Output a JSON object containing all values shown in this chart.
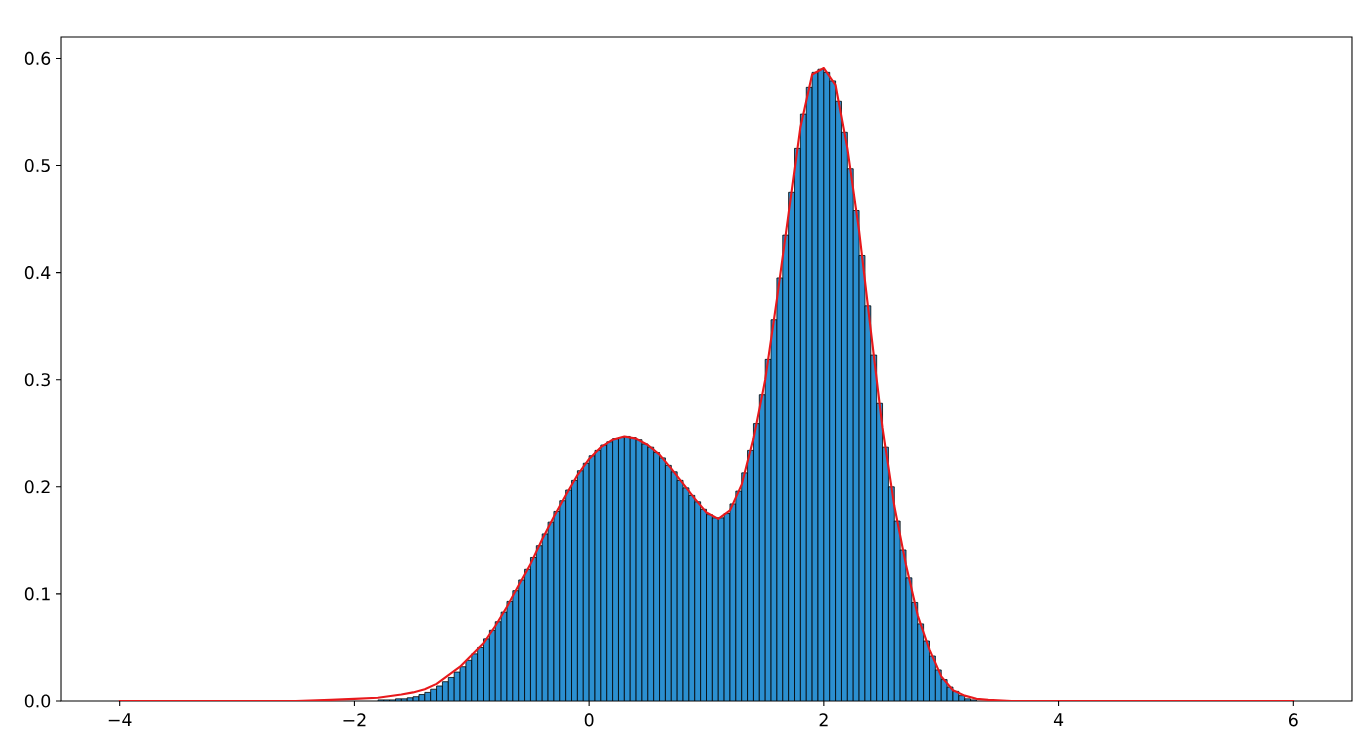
{
  "chart_data": {
    "type": "histogram",
    "bins": [
      -1.8,
      -1.75,
      -1.7,
      -1.65,
      -1.6,
      -1.55,
      -1.5,
      -1.45,
      -1.4,
      -1.35,
      -1.3,
      -1.25,
      -1.2,
      -1.15,
      -1.1,
      -1.05,
      -1,
      -0.95,
      -0.9,
      -0.85,
      -0.8,
      -0.75,
      -0.7,
      -0.65,
      -0.6,
      -0.55,
      -0.5,
      -0.45,
      -0.4,
      -0.35,
      -0.3,
      -0.25,
      -0.2,
      -0.15,
      -0.1,
      -0.05,
      0,
      0.05,
      0.1,
      0.15,
      0.2,
      0.25,
      0.3,
      0.35,
      0.4,
      0.45,
      0.5,
      0.55,
      0.6,
      0.65,
      0.7,
      0.75,
      0.8,
      0.85,
      0.9,
      0.95,
      1,
      1.05,
      1.1,
      1.15,
      1.2,
      1.25,
      1.3,
      1.35,
      1.4,
      1.45,
      1.5,
      1.55,
      1.6,
      1.65,
      1.7,
      1.75,
      1.8,
      1.85,
      1.9,
      1.95,
      2,
      2.05,
      2.1,
      2.15,
      2.2,
      2.25,
      2.3,
      2.35,
      2.4,
      2.45,
      2.5,
      2.55,
      2.6,
      2.65,
      2.7,
      2.75,
      2.8,
      2.85,
      2.9,
      2.95,
      3,
      3.05,
      3.1,
      3.15,
      3.2,
      3.25,
      3.3
    ],
    "series": [
      {
        "color": "#2b8fd0",
        "values": [
          0.001,
          0.001,
          0.001,
          0.002,
          0.002,
          0.003,
          0.004,
          0.006,
          0.008,
          0.011,
          0.014,
          0.018,
          0.022,
          0.027,
          0.032,
          0.038,
          0.044,
          0.05,
          0.058,
          0.066,
          0.074,
          0.083,
          0.093,
          0.103,
          0.113,
          0.123,
          0.134,
          0.145,
          0.156,
          0.167,
          0.177,
          0.187,
          0.197,
          0.206,
          0.215,
          0.222,
          0.229,
          0.234,
          0.239,
          0.242,
          0.245,
          0.246,
          0.247,
          0.246,
          0.244,
          0.24,
          0.237,
          0.232,
          0.227,
          0.22,
          0.214,
          0.206,
          0.199,
          0.192,
          0.186,
          0.179,
          0.174,
          0.171,
          0.171,
          0.175,
          0.184,
          0.196,
          0.213,
          0.234,
          0.259,
          0.286,
          0.319,
          0.356,
          0.395,
          0.435,
          0.475,
          0.516,
          0.548,
          0.573,
          0.587,
          0.59,
          0.587,
          0.579,
          0.56,
          0.531,
          0.497,
          0.458,
          0.416,
          0.369,
          0.323,
          0.278,
          0.237,
          0.2,
          0.168,
          0.141,
          0.115,
          0.092,
          0.072,
          0.056,
          0.042,
          0.029,
          0.02,
          0.013,
          0.009,
          0.005,
          0.002,
          0.001
        ]
      },
      {
        "type": "line",
        "color": "#e8191c",
        "x": [
          -4,
          -3.5,
          -3,
          -2.5,
          -2.2,
          -2,
          -1.8,
          -1.6,
          -1.5,
          -1.4,
          -1.3,
          -1.2,
          -1.1,
          -1,
          -0.9,
          -0.8,
          -0.7,
          -0.6,
          -0.5,
          -0.4,
          -0.3,
          -0.2,
          -0.1,
          0,
          0.1,
          0.2,
          0.3,
          0.4,
          0.5,
          0.6,
          0.7,
          0.8,
          0.9,
          1,
          1.1,
          1.2,
          1.3,
          1.4,
          1.5,
          1.6,
          1.7,
          1.8,
          1.9,
          2,
          2.1,
          2.2,
          2.3,
          2.4,
          2.5,
          2.6,
          2.7,
          2.8,
          2.9,
          3,
          3.1,
          3.2,
          3.3,
          3.4,
          3.6,
          3.8,
          4,
          4.5,
          5,
          5.5,
          6
        ],
        "values": [
          0,
          0,
          0,
          0,
          0.001,
          0.002,
          0.003,
          0.006,
          0.008,
          0.011,
          0.016,
          0.024,
          0.032,
          0.043,
          0.054,
          0.07,
          0.088,
          0.108,
          0.128,
          0.151,
          0.172,
          0.192,
          0.211,
          0.226,
          0.237,
          0.244,
          0.247,
          0.245,
          0.239,
          0.23,
          0.217,
          0.203,
          0.189,
          0.176,
          0.17,
          0.178,
          0.202,
          0.245,
          0.3,
          0.375,
          0.455,
          0.536,
          0.585,
          0.591,
          0.575,
          0.516,
          0.439,
          0.346,
          0.255,
          0.182,
          0.127,
          0.08,
          0.048,
          0.023,
          0.01,
          0.005,
          0.002,
          0.001,
          0,
          0,
          0,
          0,
          0,
          0,
          0
        ]
      }
    ],
    "xlim": [
      -4.5,
      6.5
    ],
    "ylim": [
      0,
      0.62
    ],
    "xticks": [
      {
        "value": -4,
        "label": "−4"
      },
      {
        "value": -2,
        "label": "−2"
      },
      0,
      2,
      4,
      6
    ],
    "yticks": [
      {
        "value": 0,
        "label": "0.0"
      },
      0.1,
      0.2,
      0.3,
      0.4,
      0.5,
      0.6
    ]
  }
}
